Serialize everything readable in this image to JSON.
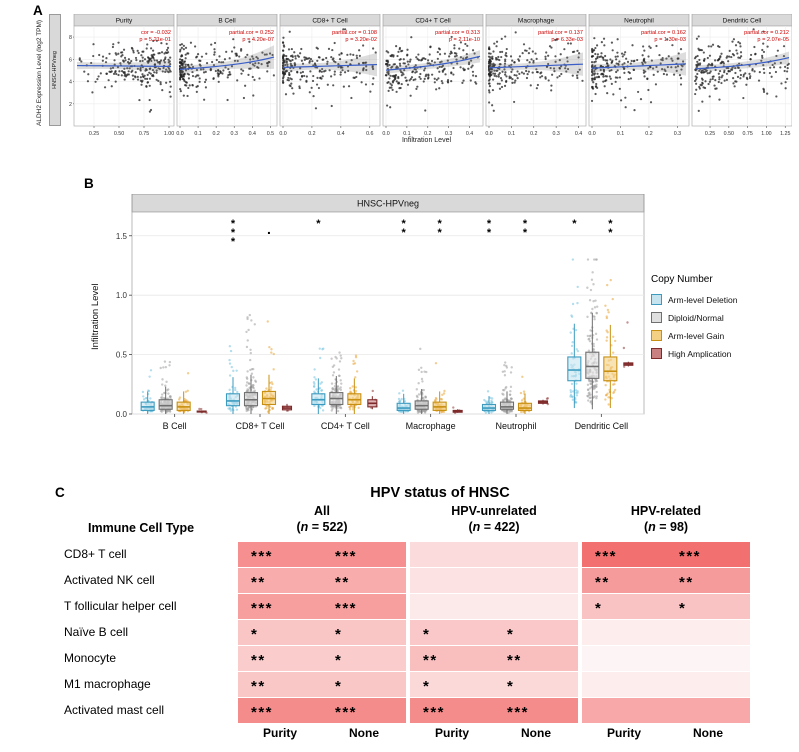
{
  "labels": {
    "a": "A",
    "b": "B",
    "c": "C"
  },
  "chart_data": [
    {
      "type": "scatter",
      "panel": "A",
      "strip_label": "HNSC-HPVneg",
      "ylabel": "ALDH2 Expression Level (log2 TPM)",
      "xlabel": "Infiltration Level",
      "y_ticks": [
        "2",
        "4",
        "6",
        "8"
      ],
      "ylim": [
        0,
        9
      ],
      "annotation_color": "#CC0000",
      "facets": [
        {
          "title": "Purity",
          "line1": "cor = -0.032",
          "line2": "p = 5.21e-01",
          "cor": -0.032,
          "xmin": 0.08,
          "xmax": 1.02,
          "xticks": [
            0.25,
            0.5,
            0.75,
            1.0
          ],
          "xtick_labels": [
            "0.25",
            "0.50",
            "0.75",
            "1.00"
          ],
          "skew": "high"
        },
        {
          "title": "B Cell",
          "line1": "partial.cor = 0.252",
          "line2": "p = 4.20e-07",
          "cor": 0.252,
          "xmin": 0.0,
          "xmax": 0.52,
          "xticks": [
            0.0,
            0.1,
            0.2,
            0.3,
            0.4,
            0.5
          ],
          "xtick_labels": [
            "0.0",
            "0.1",
            "0.2",
            "0.3",
            "0.4",
            "0.5"
          ],
          "skew": "low"
        },
        {
          "title": "CD8+ T Cell",
          "line1": "partial.cor = 0.108",
          "line2": "p = 3.20e-02",
          "cor": 0.108,
          "xmin": 0.0,
          "xmax": 0.65,
          "xticks": [
            0.0,
            0.2,
            0.4,
            0.6
          ],
          "xtick_labels": [
            "0.0",
            "0.2",
            "0.4",
            "0.6"
          ],
          "skew": "low"
        },
        {
          "title": "CD4+ T Cell",
          "line1": "partial.cor = 0.313",
          "line2": "p = 2.11e-10",
          "cor": 0.313,
          "xmin": 0.0,
          "xmax": 0.45,
          "xticks": [
            0.0,
            0.1,
            0.2,
            0.3,
            0.4
          ],
          "xtick_labels": [
            "0.0",
            "0.1",
            "0.2",
            "0.3",
            "0.4"
          ],
          "skew": "mid"
        },
        {
          "title": "Macrophage",
          "line1": "partial.cor = 0.137",
          "line2": "p = 6.33e-03",
          "cor": 0.137,
          "xmin": 0.0,
          "xmax": 0.42,
          "xticks": [
            0.0,
            0.1,
            0.2,
            0.3,
            0.4
          ],
          "xtick_labels": [
            "0.0",
            "0.1",
            "0.2",
            "0.3",
            "0.4"
          ],
          "skew": "low"
        },
        {
          "title": "Neutrophil",
          "line1": "partial.cor = 0.162",
          "line2": "p = 1.30e-03",
          "cor": 0.162,
          "xmin": 0.0,
          "xmax": 0.33,
          "xticks": [
            0.0,
            0.1,
            0.2,
            0.3
          ],
          "xtick_labels": [
            "0.0",
            "0.1",
            "0.2",
            "0.3"
          ],
          "skew": "low"
        },
        {
          "title": "Dendritic Cell",
          "line1": "partial.cor = 0.212",
          "line2": "p = 2.07e-05",
          "cor": 0.212,
          "xmin": 0.05,
          "xmax": 1.3,
          "xticks": [
            0.25,
            0.5,
            0.75,
            1.0,
            1.25
          ],
          "xtick_labels": [
            "0.25",
            "0.50",
            "0.75",
            "1.00",
            "1.25"
          ],
          "skew": "mid"
        }
      ]
    },
    {
      "type": "box",
      "panel": "B",
      "title": "HNSC-HPVneg",
      "ylabel": "Infiltration Level",
      "y_ticks": [
        "0.0",
        "0.5",
        "1.0",
        "1.5"
      ],
      "ylim": [
        0,
        1.7
      ],
      "categories": [
        "B Cell",
        "CD8+ T Cell",
        "CD4+ T Cell",
        "Macrophage",
        "Neutrophil",
        "Dendritic Cell"
      ],
      "legend_title": "Copy Number",
      "groups": [
        {
          "name": "Arm-level Deletion",
          "stroke": "#3D9BBF",
          "fill": "#C6E4F0",
          "point": "#74C3DF"
        },
        {
          "name": "Diploid/Normal",
          "stroke": "#6F6F6F",
          "fill": "#DFDFDF",
          "point": "#9E9E9E"
        },
        {
          "name": "Arm-level Gain",
          "stroke": "#C79012",
          "fill": "#F3D083",
          "point": "#E9A63A"
        },
        {
          "name": "High Amplication",
          "stroke": "#7E2A2A",
          "fill": "#C98080",
          "point": "#8F3B3B"
        }
      ],
      "jitter_n": [
        55,
        140,
        55,
        4
      ],
      "boxes": [
        [
          [
            0.0,
            0.03,
            0.06,
            0.1,
            0.19
          ],
          [
            0.0,
            0.04,
            0.07,
            0.12,
            0.23
          ],
          [
            0.0,
            0.03,
            0.06,
            0.1,
            0.19
          ],
          [
            0.012,
            0.016,
            0.02,
            0.025,
            0.03
          ]
        ],
        [
          [
            0.0,
            0.07,
            0.11,
            0.17,
            0.31
          ],
          [
            0.0,
            0.07,
            0.12,
            0.18,
            0.33
          ],
          [
            0.0,
            0.08,
            0.13,
            0.19,
            0.33
          ],
          [
            0.02,
            0.035,
            0.05,
            0.065,
            0.085
          ]
        ],
        [
          [
            0.0,
            0.08,
            0.12,
            0.17,
            0.3
          ],
          [
            0.0,
            0.08,
            0.13,
            0.18,
            0.32
          ],
          [
            0.0,
            0.08,
            0.12,
            0.17,
            0.3
          ],
          [
            0.04,
            0.06,
            0.09,
            0.12,
            0.15
          ]
        ],
        [
          [
            0.0,
            0.03,
            0.05,
            0.09,
            0.17
          ],
          [
            0.0,
            0.04,
            0.07,
            0.11,
            0.21
          ],
          [
            0.0,
            0.03,
            0.06,
            0.1,
            0.19
          ],
          [
            0.01,
            0.015,
            0.02,
            0.03,
            0.04
          ]
        ],
        [
          [
            0.0,
            0.03,
            0.05,
            0.08,
            0.15
          ],
          [
            0.0,
            0.04,
            0.06,
            0.1,
            0.19
          ],
          [
            0.0,
            0.03,
            0.05,
            0.09,
            0.17
          ],
          [
            0.08,
            0.09,
            0.1,
            0.11,
            0.12
          ]
        ],
        [
          [
            0.05,
            0.28,
            0.37,
            0.48,
            0.76
          ],
          [
            0.04,
            0.3,
            0.4,
            0.52,
            0.85
          ],
          [
            0.05,
            0.28,
            0.36,
            0.48,
            0.75
          ],
          [
            0.4,
            0.41,
            0.42,
            0.43,
            0.44
          ]
        ]
      ],
      "outlier_max": [
        0.45,
        0.9,
        0.55,
        0.55,
        0.5,
        1.3
      ],
      "annotations": [
        {
          "cat": 1,
          "grp": 0,
          "sym": "***"
        },
        {
          "cat": 1,
          "grp": 2,
          "sym": "."
        },
        {
          "cat": 2,
          "grp": 0,
          "sym": "*"
        },
        {
          "cat": 3,
          "grp": 0,
          "sym": "**"
        },
        {
          "cat": 3,
          "grp": 2,
          "sym": "**"
        },
        {
          "cat": 4,
          "grp": 0,
          "sym": "**"
        },
        {
          "cat": 4,
          "grp": 2,
          "sym": "**"
        },
        {
          "cat": 5,
          "grp": 0,
          "sym": "*"
        },
        {
          "cat": 5,
          "grp": 2,
          "sym": "**"
        }
      ]
    },
    {
      "type": "heatmap",
      "panel": "C",
      "title": "HPV status of HNSC",
      "row_header": "Immune Cell Type",
      "col_groups": [
        {
          "label": "All",
          "n": "522"
        },
        {
          "label": "HPV-unrelated",
          "n": "422"
        },
        {
          "label": "HPV-related",
          "n": "98"
        }
      ],
      "col_footer": [
        "Purity",
        "None",
        "Purity",
        "None",
        "Purity",
        "None"
      ],
      "rows": [
        {
          "label": "CD8+ T cell",
          "stars": [
            "***",
            "***",
            "",
            "",
            "***",
            "***"
          ],
          "colors": [
            "#F69090",
            "#F69090",
            "#FBDBDB",
            "#FBDBDB",
            "#F37070",
            "#F37070"
          ]
        },
        {
          "label": "Activated NK cell",
          "stars": [
            "**",
            "**",
            "",
            "",
            "**",
            "**"
          ],
          "colors": [
            "#F8ACAC",
            "#F8ACAC",
            "#FCE2E2",
            "#FCE2E2",
            "#F69B9B",
            "#F69B9B"
          ]
        },
        {
          "label": "T follicular helper cell",
          "stars": [
            "***",
            "***",
            "",
            "",
            "*",
            "*"
          ],
          "colors": [
            "#F79F9F",
            "#F79F9F",
            "#FCE9E9",
            "#FCE9E9",
            "#FAC3C3",
            "#FAC3C3"
          ]
        },
        {
          "label": "Naïve B cell",
          "stars": [
            "*",
            "*",
            "*",
            "*",
            "",
            ""
          ],
          "colors": [
            "#FAC5C5",
            "#FAC5C5",
            "#FAC8C8",
            "#FAC8C8",
            "#FDEDED",
            "#FDEDED"
          ]
        },
        {
          "label": "Monocyte",
          "stars": [
            "**",
            "*",
            "**",
            "**",
            "",
            ""
          ],
          "colors": [
            "#FACCCC",
            "#FACCCC",
            "#F9BFBF",
            "#F9BFBF",
            "#FDF5F5",
            "#FDF5F5"
          ]
        },
        {
          "label": "M1 macrophage",
          "stars": [
            "**",
            "*",
            "*",
            "*",
            "",
            ""
          ],
          "colors": [
            "#FAC7C7",
            "#FAC7C7",
            "#FBD9D9",
            "#FBD9D9",
            "#FDEDED",
            "#FDEDED"
          ]
        },
        {
          "label": "Activated mast cell",
          "stars": [
            "***",
            "***",
            "***",
            "***",
            "",
            ""
          ],
          "colors": [
            "#F58C8C",
            "#F58C8C",
            "#F58C8C",
            "#F58C8C",
            "#F8A8A8",
            "#F8A8A8"
          ]
        }
      ]
    }
  ]
}
